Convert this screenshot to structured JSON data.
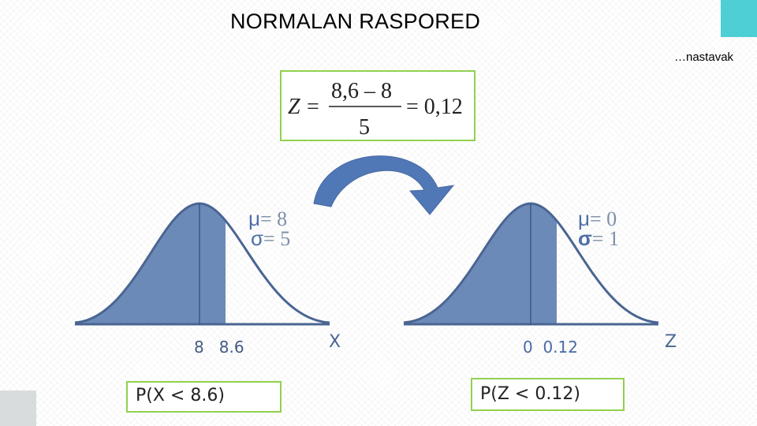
{
  "title": "NORMALAN RASPORED",
  "subtitle": "…nastavak",
  "formula": {
    "lhs": "Z",
    "equals": "=",
    "numerator": "8,6 – 8",
    "denominator": "5",
    "result": "= 0,12"
  },
  "left_distribution": {
    "mu_symbol": "μ",
    "mu_value": "= 8",
    "sigma_symbol": "σ",
    "sigma_value": "= 5",
    "tick_labels": "8   8.6",
    "axis_label": "X",
    "probability": "P(X < 8.6)"
  },
  "right_distribution": {
    "mu_symbol": "μ",
    "mu_value": "= 0",
    "sigma_symbol": "σ",
    "sigma_value": "= 1",
    "tick_labels": "0  0.12",
    "axis_label": "Z",
    "probability": "P(Z < 0.12)"
  },
  "colors": {
    "curve_fill": "#6c8ab8",
    "curve_stroke": "#4a6592",
    "arrow": "#5077b6",
    "box_border": "#92d050",
    "accent_corner": "#4ecfd6"
  }
}
